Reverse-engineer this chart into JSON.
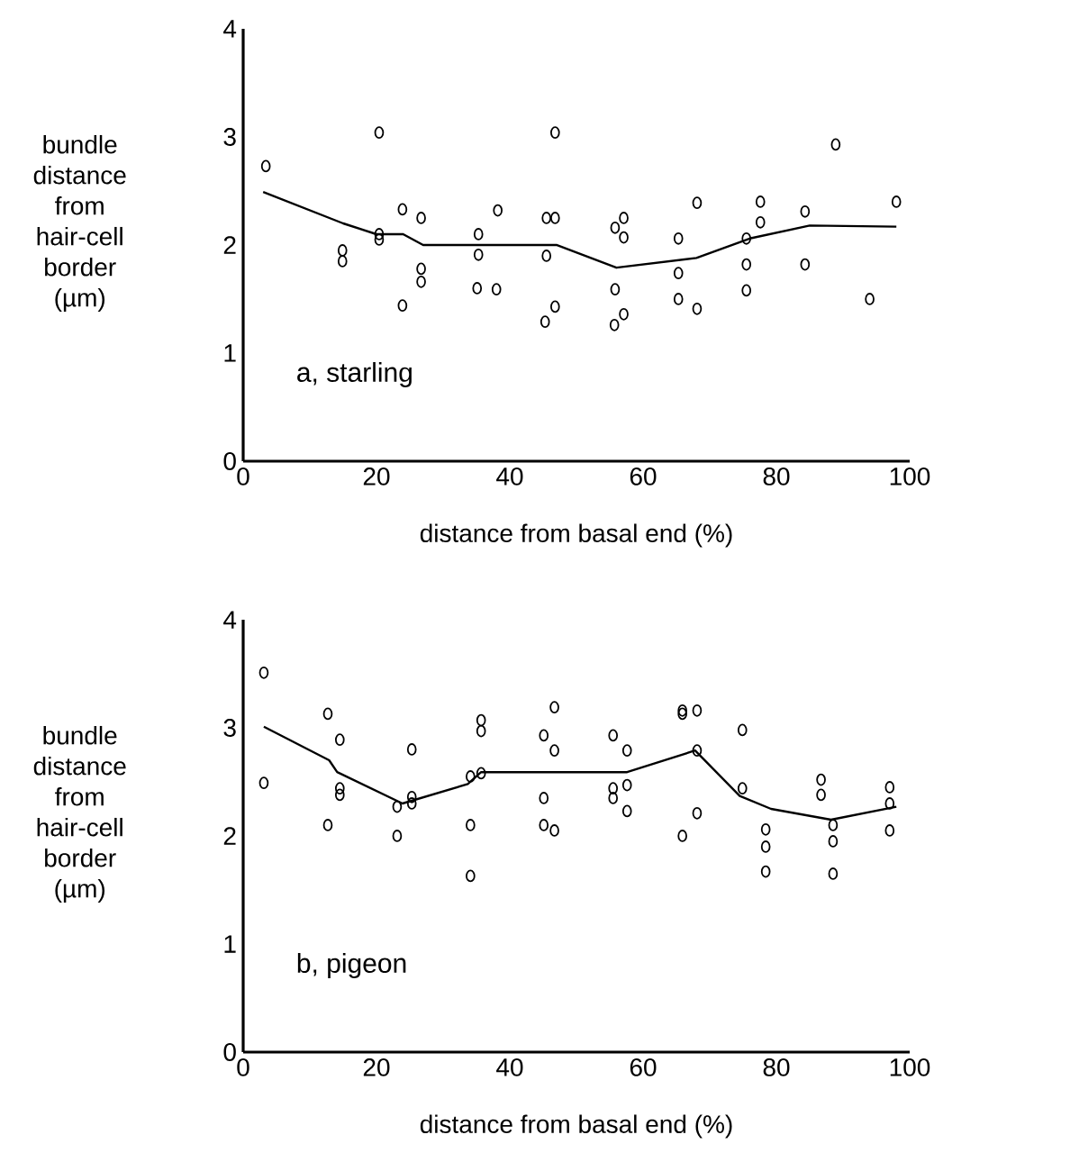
{
  "chart_data": [
    {
      "type": "scatter",
      "ylabel": "bundle distance from hair-cell border (µm)",
      "xlabel": "distance from basal end (%)",
      "annotations": [
        "a, starling"
      ],
      "xlim": [
        0,
        100
      ],
      "xticks": [
        0,
        20,
        40,
        60,
        80,
        100
      ],
      "ylim": [
        0,
        4
      ],
      "yticks": [
        0,
        1,
        2,
        3,
        4
      ],
      "grid": false,
      "series": [
        {
          "color": "#000000",
          "marker": "circle",
          "x": [
            3.4,
            20.4,
            14.9,
            14.9,
            20.4,
            20.4,
            23.9,
            26.7,
            26.7,
            26.7,
            23.9,
            35.3,
            35.3,
            38.2,
            35.1,
            38.0,
            46.8,
            45.5,
            46.8,
            45.5,
            46.8,
            45.3,
            55.8,
            57.1,
            57.1,
            55.8,
            57.1,
            55.7,
            65.3,
            68.1,
            65.3,
            65.3,
            68.1,
            77.6,
            77.6,
            75.5,
            75.5,
            75.5,
            84.3,
            84.3,
            88.9,
            94,
            98
          ],
          "values": [
            2.73,
            3.04,
            1.95,
            1.85,
            2.1,
            2.05,
            2.33,
            2.25,
            1.78,
            1.66,
            1.44,
            2.1,
            1.91,
            2.32,
            1.6,
            1.59,
            3.04,
            2.25,
            2.25,
            1.9,
            1.43,
            1.29,
            2.16,
            2.25,
            2.07,
            1.59,
            1.36,
            1.26,
            2.06,
            2.39,
            1.74,
            1.5,
            1.41,
            2.4,
            2.21,
            2.06,
            1.82,
            1.58,
            2.31,
            1.82,
            2.93,
            1.5,
            2.4
          ]
        },
        {
          "type": "line",
          "color": "#000000",
          "marker": "none",
          "x": [
            3,
            15,
            20,
            24,
            27,
            47,
            56,
            68,
            76,
            85,
            98
          ],
          "values": [
            2.49,
            2.2,
            2.1,
            2.1,
            2.0,
            2.0,
            1.79,
            1.88,
            2.06,
            2.18,
            2.17
          ]
        }
      ]
    },
    {
      "type": "scatter",
      "ylabel": "bundle distance from hair-cell border (µm)",
      "xlabel": "distance from basal end (%)",
      "annotations": [
        "b, pigeon"
      ],
      "xlim": [
        0,
        100
      ],
      "xticks": [
        0,
        20,
        40,
        60,
        80,
        100
      ],
      "ylim": [
        0,
        4
      ],
      "yticks": [
        0,
        1,
        2,
        3,
        4
      ],
      "grid": false,
      "series": [
        {
          "color": "#000000",
          "marker": "circle",
          "x": [
            3.1,
            3.1,
            12.7,
            14.5,
            14.5,
            14.5,
            12.7,
            25.3,
            23.1,
            25.3,
            25.3,
            23.1,
            35.7,
            35.7,
            34.1,
            35.7,
            34.1,
            34.1,
            46.7,
            45.1,
            46.7,
            45.1,
            45.1,
            46.7,
            55.5,
            57.6,
            55.5,
            55.5,
            57.6,
            57.6,
            65.9,
            68.1,
            65.9,
            68.1,
            68.1,
            65.9,
            74.9,
            74.9,
            78.4,
            78.4,
            78.4,
            86.7,
            86.7,
            88.5,
            88.5,
            88.5,
            97,
            97,
            97
          ],
          "values": [
            3.51,
            2.49,
            3.13,
            2.89,
            2.44,
            2.38,
            2.1,
            2.8,
            2.27,
            2.36,
            2.3,
            2.0,
            3.07,
            2.97,
            2.55,
            2.58,
            2.1,
            1.63,
            3.19,
            2.93,
            2.79,
            2.35,
            2.1,
            2.05,
            2.93,
            2.79,
            2.44,
            2.35,
            2.47,
            2.23,
            3.16,
            3.16,
            3.13,
            2.79,
            2.21,
            2.0,
            2.98,
            2.44,
            2.06,
            1.9,
            1.67,
            2.52,
            2.38,
            2.1,
            1.95,
            1.65,
            2.45,
            2.3,
            2.05
          ]
        },
        {
          "type": "line",
          "color": "#000000",
          "marker": "none",
          "x": [
            3.1,
            12.9,
            14.1,
            23.9,
            33.7,
            35.7,
            57.6,
            67.8,
            74.5,
            79.2,
            88.2,
            98
          ],
          "values": [
            3.01,
            2.7,
            2.59,
            2.3,
            2.48,
            2.59,
            2.59,
            2.79,
            2.37,
            2.25,
            2.15,
            2.27
          ]
        }
      ]
    }
  ]
}
